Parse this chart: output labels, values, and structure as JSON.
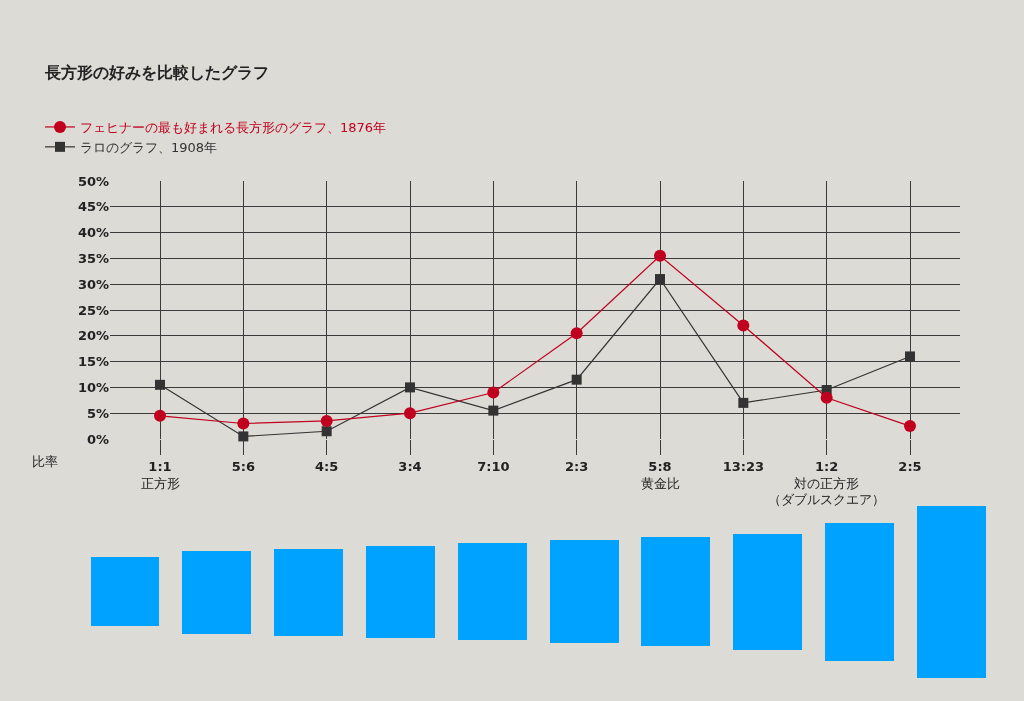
{
  "chart_data": {
    "type": "line",
    "title": "長方形の好みを比較したグラフ",
    "xlabel": "比率",
    "categories": [
      "1:1\n正方形",
      "5:6",
      "4:5",
      "3:4",
      "7:10",
      "2:3",
      "5:8\n黄金比",
      "13:23",
      "1:2\n対の正方形（ダブルスクエア）",
      "2:5"
    ],
    "series": [
      {
        "name": "フェヒナーの最も好まれる長方形のグラフ、1876年",
        "color": "#c0001e",
        "marker": "circle",
        "values": [
          4.5,
          3,
          3.5,
          5,
          9,
          20.5,
          35.5,
          22,
          8,
          2.5
        ]
      },
      {
        "name": "ラロのグラフ、1908年",
        "color": "#333333",
        "marker": "square",
        "values": [
          10.5,
          0.5,
          1.5,
          10,
          5.5,
          11.5,
          31,
          7,
          9.5,
          16
        ]
      }
    ],
    "ylim": [
      0,
      50
    ],
    "yticks": [
      {
        "value": 0,
        "label": "0%"
      },
      {
        "value": 5,
        "label": "5%"
      },
      {
        "value": 10,
        "label": "10%"
      },
      {
        "value": 15,
        "label": "15%"
      },
      {
        "value": 20,
        "label": "20%"
      },
      {
        "value": 25,
        "label": "25%"
      },
      {
        "value": 30,
        "label": "30%"
      },
      {
        "value": 35,
        "label": "35%"
      },
      {
        "value": 40,
        "label": "40%"
      },
      {
        "value": 45,
        "label": "45%"
      },
      {
        "value": 50,
        "label": "50%"
      }
    ],
    "grid": true,
    "legend": "top left",
    "line_style": "solid"
  }
}
